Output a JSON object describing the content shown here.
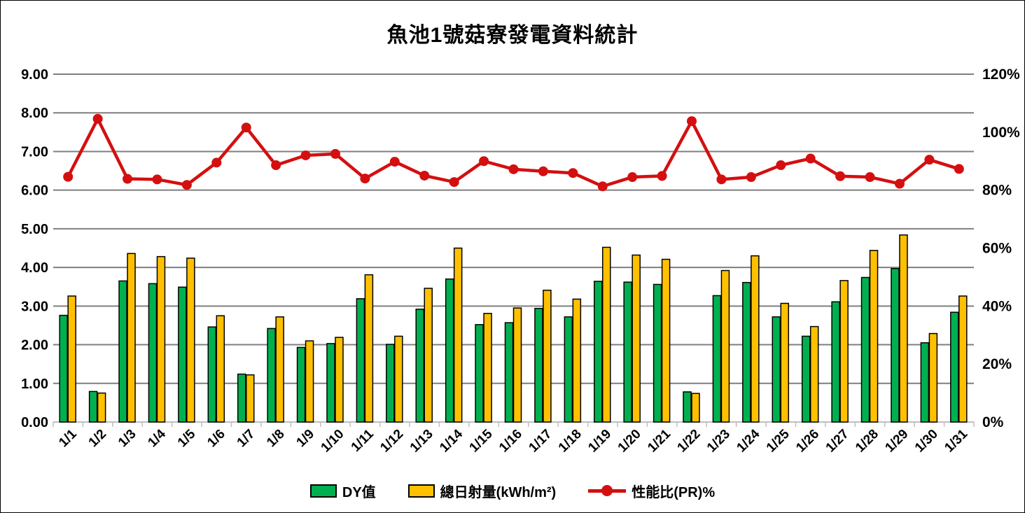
{
  "chart_data": {
    "type": "combo",
    "title": "魚池1號菇寮發電資料統計",
    "categories": [
      "1/1",
      "1/2",
      "1/3",
      "1/4",
      "1/5",
      "1/6",
      "1/7",
      "1/8",
      "1/9",
      "1/10",
      "1/11",
      "1/12",
      "1/13",
      "1/14",
      "1/15",
      "1/16",
      "1/17",
      "1/18",
      "1/19",
      "1/20",
      "1/21",
      "1/22",
      "1/23",
      "1/24",
      "1/25",
      "1/26",
      "1/27",
      "1/28",
      "1/29",
      "1/30",
      "1/31"
    ],
    "series": [
      {
        "name": "DY值",
        "type": "bar",
        "axis": "left",
        "color": "#00B050",
        "values": [
          2.76,
          0.79,
          3.65,
          3.58,
          3.49,
          2.46,
          1.24,
          2.42,
          1.93,
          2.03,
          3.19,
          2.01,
          2.92,
          3.7,
          2.52,
          2.57,
          2.94,
          2.72,
          3.64,
          3.62,
          3.56,
          0.78,
          3.27,
          3.61,
          2.72,
          2.22,
          3.11,
          3.74,
          3.97,
          2.05,
          2.84
        ]
      },
      {
        "name": "總日射量(kWh/m²)",
        "type": "bar",
        "axis": "left",
        "color": "#FFC000",
        "values": [
          3.26,
          0.75,
          4.36,
          4.28,
          4.24,
          2.75,
          1.22,
          2.72,
          2.1,
          2.19,
          3.81,
          2.22,
          3.46,
          4.5,
          2.81,
          2.95,
          3.41,
          3.18,
          4.52,
          4.32,
          4.21,
          0.74,
          3.92,
          4.3,
          3.07,
          2.47,
          3.66,
          4.44,
          4.84,
          2.29,
          3.26
        ]
      },
      {
        "name": "性能比(PR)%",
        "type": "line",
        "axis": "right",
        "color": "#D40F0F",
        "values": [
          84.6,
          104.6,
          83.9,
          83.7,
          81.8,
          89.5,
          101.6,
          88.6,
          92.0,
          92.5,
          84.0,
          89.8,
          85.0,
          82.8,
          90.0,
          87.2,
          86.5,
          85.9,
          81.3,
          84.5,
          84.9,
          103.8,
          83.7,
          84.5,
          88.6,
          90.9,
          84.8,
          84.5,
          82.2,
          90.5,
          87.3
        ]
      }
    ],
    "left_axis": {
      "min": 0,
      "max": 9,
      "step": 1,
      "tick_labels": [
        "0.00",
        "1.00",
        "2.00",
        "3.00",
        "4.00",
        "5.00",
        "6.00",
        "7.00",
        "8.00",
        "9.00"
      ]
    },
    "right_axis": {
      "min": 0,
      "max": 120,
      "step": 20,
      "tick_labels": [
        "0%",
        "20%",
        "40%",
        "60%",
        "80%",
        "100%",
        "120%"
      ]
    },
    "grid": true,
    "legend_position": "bottom",
    "gridline_color": "#7F7F7F",
    "axis_line_color": "#BFBFBF",
    "text_color": "#000000",
    "background_color": "#FFFFFF"
  }
}
